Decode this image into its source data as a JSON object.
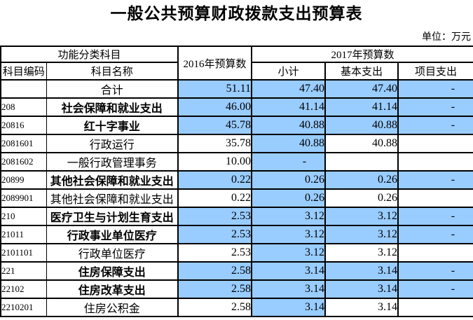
{
  "page": {
    "title": "一般公共预算财政拨款支出预算表",
    "unit_label": "单位：万元"
  },
  "colors": {
    "highlight": "#99CCFF",
    "border": "#000000",
    "text": "#000000",
    "background": "#FFFFFF"
  },
  "table": {
    "header": {
      "func_group": "功能分类科目",
      "code": "科目编码",
      "name": "科目名称",
      "y2016": "2016年预算数",
      "y2017": "2017年预算数",
      "subtotal": "小计",
      "basic": "基本支出",
      "project": "项目支出"
    },
    "rows": [
      {
        "code": "",
        "name": "合计",
        "bold": false,
        "values": [
          "51.11",
          "47.40",
          "47.40",
          "-"
        ],
        "highlight": [
          true,
          true,
          true,
          true
        ]
      },
      {
        "code": "208",
        "name": "社会保障和就业支出",
        "bold": true,
        "values": [
          "46.00",
          "41.14",
          "41.14",
          "-"
        ],
        "highlight": [
          true,
          true,
          true,
          true
        ]
      },
      {
        "code": "20816",
        "name": "红十字事业",
        "bold": true,
        "values": [
          "45.78",
          "40.88",
          "40.88",
          "-"
        ],
        "highlight": [
          true,
          true,
          true,
          true
        ]
      },
      {
        "code": "2081601",
        "name": "行政运行",
        "bold": false,
        "values": [
          "35.78",
          "40.88",
          "40.88",
          ""
        ],
        "highlight": [
          false,
          true,
          false,
          false
        ]
      },
      {
        "code": "2081602",
        "name": "一般行政管理事务",
        "bold": false,
        "values": [
          "10.00",
          "-",
          "",
          ""
        ],
        "highlight": [
          false,
          true,
          false,
          false
        ]
      },
      {
        "code": "20899",
        "name": "其他社会保障和就业支出",
        "bold": true,
        "values": [
          "0.22",
          "0.26",
          "0.26",
          "-"
        ],
        "highlight": [
          true,
          true,
          true,
          true
        ]
      },
      {
        "code": "2089901",
        "name": "其他社会保障和就业支出",
        "bold": false,
        "values": [
          "0.22",
          "0.26",
          "0.26",
          ""
        ],
        "highlight": [
          false,
          true,
          false,
          false
        ]
      },
      {
        "code": "210",
        "name": "医疗卫生与计划生育支出",
        "bold": true,
        "values": [
          "2.53",
          "3.12",
          "3.12",
          "-"
        ],
        "highlight": [
          true,
          true,
          true,
          true
        ]
      },
      {
        "code": "21011",
        "name": "行政事业单位医疗",
        "bold": true,
        "values": [
          "2.53",
          "3.12",
          "3.12",
          "-"
        ],
        "highlight": [
          true,
          true,
          true,
          true
        ]
      },
      {
        "code": "2101101",
        "name": "行政单位医疗",
        "bold": false,
        "values": [
          "2.53",
          "3.12",
          "3.12",
          ""
        ],
        "highlight": [
          false,
          true,
          false,
          false
        ]
      },
      {
        "code": "221",
        "name": "住房保障支出",
        "bold": true,
        "values": [
          "2.58",
          "3.14",
          "3.14",
          "-"
        ],
        "highlight": [
          true,
          true,
          true,
          true
        ]
      },
      {
        "code": "22102",
        "name": "住房改革支出",
        "bold": true,
        "values": [
          "2.58",
          "3.14",
          "3.14",
          "-"
        ],
        "highlight": [
          true,
          true,
          true,
          true
        ]
      },
      {
        "code": "2210201",
        "name": "住房公积金",
        "bold": false,
        "values": [
          "2.58",
          "3.14",
          "3.14",
          ""
        ],
        "highlight": [
          false,
          true,
          false,
          false
        ]
      }
    ]
  }
}
